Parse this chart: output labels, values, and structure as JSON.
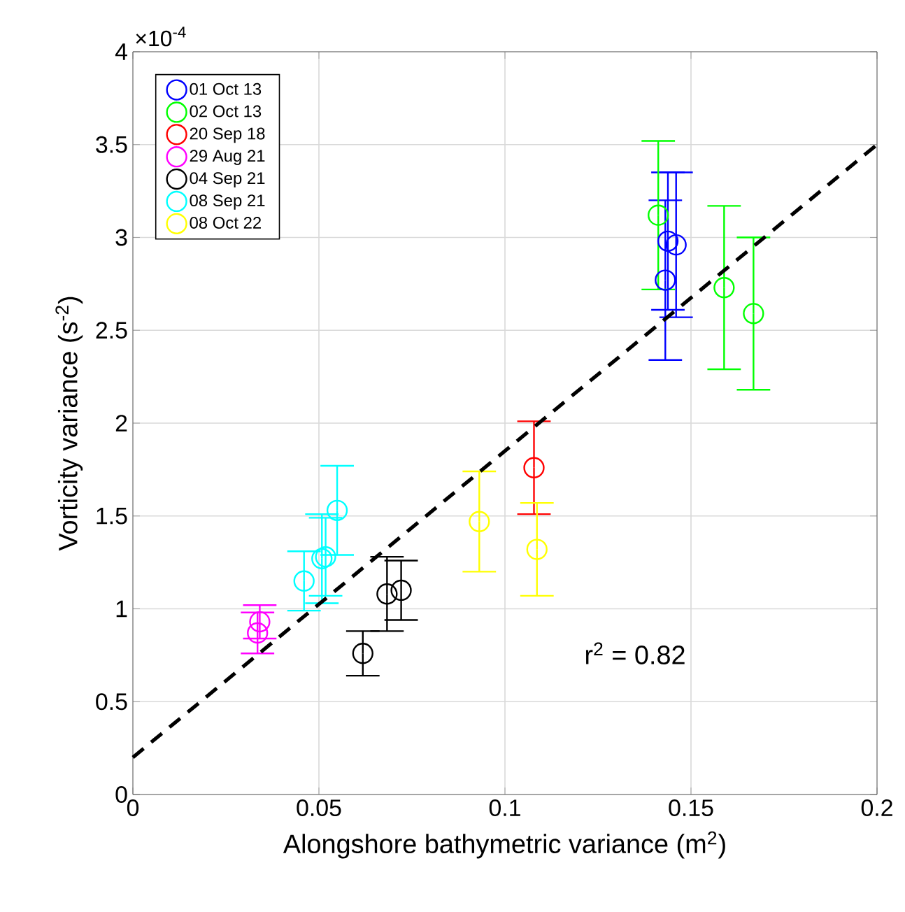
{
  "chart_data": {
    "type": "scatter",
    "xlabel": "Alongshore bathymetric variance (m$^{2}$)",
    "ylabel": "Vorticity variance (s$^{-2}$)",
    "xlim": [
      0,
      0.2
    ],
    "xticks": [
      0,
      0.05,
      0.1,
      0.15,
      0.2
    ],
    "ylim": [
      0,
      4
    ],
    "yticks": [
      0,
      0.5,
      1,
      1.5,
      2,
      2.5,
      3,
      3.5,
      4
    ],
    "grid": true,
    "legend": "top left",
    "marker": "circle",
    "annotations": [
      "r$^{2}$ = 0.82",
      "×10$^{-4}$"
    ],
    "series": [
      {
        "name": "01 Oct 13",
        "color": "#0000ff",
        "x": [
          0.1438,
          0.146,
          0.1431
        ],
        "values": [
          2.98,
          2.96,
          2.77
        ],
        "errors": [
          0.37,
          0.39,
          0.43
        ]
      },
      {
        "name": "02 Oct 13",
        "color": "#00ff00",
        "x": [
          0.1412,
          0.1589,
          0.1668
        ],
        "values": [
          3.12,
          2.73,
          2.59
        ],
        "errors": [
          0.4,
          0.44,
          0.41
        ]
      },
      {
        "name": "20 Sep 18",
        "color": "#ff0000",
        "x": [
          0.1078
        ],
        "values": [
          1.76
        ],
        "errors": [
          0.25
        ]
      },
      {
        "name": "29 Aug 21",
        "color": "#ff00ff",
        "x": [
          0.0341,
          0.0335
        ],
        "values": [
          0.93,
          0.87
        ],
        "errors": [
          0.09,
          0.11
        ]
      },
      {
        "name": "04 Sep 21",
        "color": "#000000",
        "x": [
          0.0618,
          0.0683,
          0.0721
        ],
        "values": [
          0.76,
          1.08,
          1.1
        ],
        "errors": [
          0.12,
          0.2,
          0.16
        ]
      },
      {
        "name": "08 Sep 21",
        "color": "#00ffff",
        "x": [
          0.0549,
          0.0508,
          0.0518,
          0.046
        ],
        "values": [
          1.53,
          1.27,
          1.28,
          1.15
        ],
        "errors": [
          0.24,
          0.24,
          0.21,
          0.16
        ]
      },
      {
        "name": "08 Oct 22",
        "color": "#ffff00",
        "x": [
          0.0931,
          0.1086
        ],
        "values": [
          1.47,
          1.32
        ],
        "errors": [
          0.27,
          0.25
        ]
      },
      {
        "type": "line",
        "color": "#000000",
        "line_style": "dashed",
        "marker": "none",
        "x": [
          0,
          0.2
        ],
        "values": [
          0.2,
          3.5
        ]
      }
    ]
  }
}
